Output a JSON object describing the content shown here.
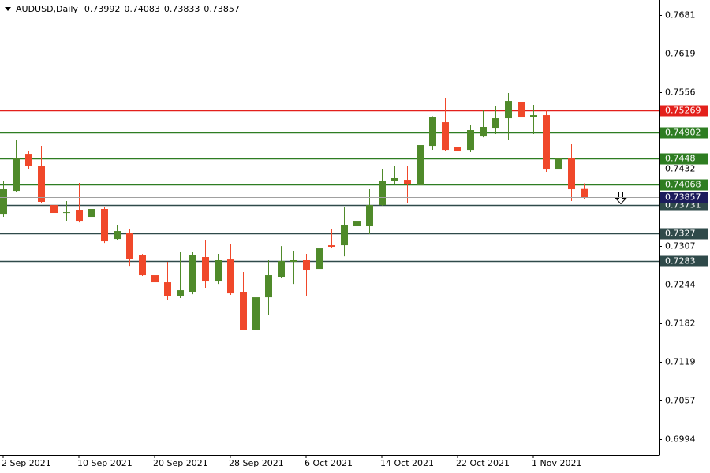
{
  "chart_data": {
    "type": "candlestick",
    "title": "AUDUSD,Daily",
    "categories": [
      "2 Sep 2021",
      null,
      null,
      null,
      null,
      null,
      "10 Sep 2021",
      null,
      null,
      null,
      null,
      null,
      "20 Sep 2021",
      null,
      null,
      null,
      null,
      null,
      "28 Sep 2021",
      null,
      null,
      null,
      null,
      null,
      "6 Oct 2021",
      null,
      null,
      null,
      null,
      null,
      "14 Oct 2021",
      null,
      null,
      null,
      null,
      null,
      "22 Oct 2021",
      null,
      null,
      null,
      null,
      null,
      "1 Nov 2021",
      null,
      null,
      null,
      null
    ],
    "open": [
      0.73579,
      0.73962,
      0.74562,
      0.74371,
      0.73732,
      0.73605,
      0.73656,
      0.73541,
      0.73669,
      0.73183,
      0.73273,
      0.72928,
      0.72596,
      0.72481,
      0.72264,
      0.72328,
      0.7289,
      0.72494,
      0.72851,
      0.72328,
      0.71715,
      0.72238,
      0.72558,
      0.72813,
      0.72839,
      0.72698,
      0.73081,
      0.73081,
      0.73388,
      0.73388,
      0.73732,
      0.74116,
      0.74141,
      0.74052,
      0.7469,
      0.75073,
      0.74665,
      0.74626,
      0.74843,
      0.74971,
      0.75137,
      0.75393,
      0.75163,
      0.75188,
      0.74307,
      0.74486,
      0.73992
    ],
    "high": [
      0.74116,
      0.7478,
      0.74601,
      0.7469,
      0.73886,
      0.73796,
      0.7409,
      0.73758,
      0.73707,
      0.73413,
      0.73349,
      0.7294,
      0.72711,
      0.72813,
      0.72966,
      0.72966,
      0.73158,
      0.72941,
      0.73094,
      0.72647,
      0.72609,
      0.72839,
      0.73068,
      0.72992,
      0.72941,
      0.73285,
      0.73349,
      0.73707,
      0.7386,
      0.73988,
      0.74307,
      0.74371,
      0.74371,
      0.74856,
      0.7517,
      0.75469,
      0.75137,
      0.75035,
      0.75265,
      0.75329,
      0.75546,
      0.75559,
      0.75354,
      0.75265,
      0.74601,
      0.74716,
      0.74083
    ],
    "low": [
      0.73541,
      0.73937,
      0.74307,
      0.73758,
      0.73451,
      0.73477,
      0.73451,
      0.73477,
      0.73119,
      0.73158,
      0.72736,
      0.72583,
      0.722,
      0.722,
      0.72226,
      0.72289,
      0.72392,
      0.72455,
      0.72277,
      0.71702,
      0.71702,
      0.71945,
      0.72545,
      0.72455,
      0.72251,
      0.72685,
      0.7303,
      0.72902,
      0.73349,
      0.7326,
      0.7372,
      0.74077,
      0.73771,
      0.74039,
      0.74626,
      0.74601,
      0.74562,
      0.74588,
      0.7483,
      0.74882,
      0.7478,
      0.75073,
      0.74882,
      0.74269,
      0.7409,
      0.73796,
      0.73833
    ],
    "close": [
      0.73988,
      0.74499,
      0.74371,
      0.73784,
      0.73605,
      0.73617,
      0.73477,
      0.73669,
      0.73145,
      0.73311,
      0.72864,
      0.72596,
      0.72481,
      0.72264,
      0.72353,
      0.72928,
      0.72494,
      0.72839,
      0.72302,
      0.71715,
      0.72238,
      0.72596,
      0.72826,
      0.72839,
      0.72673,
      0.7303,
      0.73056,
      0.73413,
      0.73477,
      0.73732,
      0.74128,
      0.74167,
      0.74077,
      0.74703,
      0.75163,
      0.74626,
      0.74601,
      0.74946,
      0.74997,
      0.75137,
      0.75418,
      0.7515,
      0.75188,
      0.74307,
      0.74499,
      0.73988,
      0.73857
    ],
    "up_color": "#4f8a2a",
    "down_color": "#f0482a",
    "current_price_color": "#1c1c5c",
    "ylim": [
      0.69685,
      0.77053
    ],
    "yticks": [
      0.7681,
      0.7619,
      0.7556,
      0.7432,
      0.7307,
      0.7244,
      0.7182,
      0.7119,
      0.7057,
      0.6994
    ],
    "levels": [
      {
        "value": 0.75269,
        "color": "#e3201b"
      },
      {
        "value": 0.74902,
        "color": "#2e7d22"
      },
      {
        "value": 0.7448,
        "color": "#2e7d22"
      },
      {
        "value": 0.74068,
        "color": "#2e7d22"
      },
      {
        "value": 0.73731,
        "color": "#2f4a4a"
      },
      {
        "value": 0.7327,
        "color": "#2f4a4a"
      },
      {
        "value": 0.7283,
        "color": "#2f4a4a"
      }
    ]
  }
}
